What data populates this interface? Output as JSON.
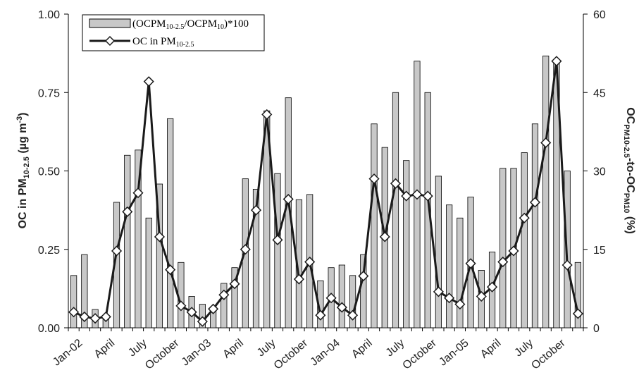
{
  "chart_data": {
    "type": "bar+line",
    "x_tick_labels": [
      "Jan-02",
      "April",
      "July",
      "October",
      "Jan-03",
      "April",
      "July",
      "October",
      "Jan-04",
      "April",
      "July",
      "October",
      "Jan-05",
      "April",
      "July",
      "October"
    ],
    "left_axis": {
      "label_main": "OC in PM",
      "label_sub": "10-2.5",
      "label_unit": " (µg m",
      "label_sup": "-3",
      "label_close": ")",
      "ylim": [
        0,
        1.0
      ],
      "ticks": [
        "0.00",
        "0.25",
        "0.50",
        "0.75",
        "1.00"
      ]
    },
    "right_axis": {
      "label_a": "OC",
      "label_a_sub": "PM10-2.5",
      "label_b": "-to-OC",
      "label_b_sub": "PM10",
      "label_c": " (%)",
      "ylim": [
        0,
        60
      ],
      "ticks": [
        "0",
        "15",
        "30",
        "45",
        "60"
      ]
    },
    "legend": {
      "bar_label": {
        "pre": "(OCPM",
        "sub1": "10-2.5",
        "mid": "/OCPM",
        "sub2": "10",
        "post": ")*100"
      },
      "line_label": {
        "pre": "OC in PM",
        "sub": "10-2.5"
      },
      "position": "top-left"
    },
    "series": [
      {
        "axis": "right",
        "type": "bar",
        "color": "#c8c8c8",
        "values": [
          10,
          14,
          3.5,
          2,
          24,
          33,
          34,
          21,
          27.5,
          40,
          12.5,
          6,
          4.5,
          4,
          8.5,
          11.5,
          28.5,
          26.5,
          41.5,
          29.5,
          44,
          24.5,
          25.5,
          9,
          11.5,
          12,
          10,
          14,
          39,
          34.5,
          45,
          32,
          51,
          45,
          29,
          23.5,
          21,
          25,
          11,
          14.5,
          30.5,
          30.5,
          33.5,
          39,
          52,
          51,
          30,
          12.5
        ]
      },
      {
        "axis": "left",
        "type": "line",
        "color": "#1a1a1a",
        "marker": "diamond",
        "values": [
          0.05,
          0.035,
          0.03,
          0.035,
          0.245,
          0.37,
          0.43,
          0.785,
          0.29,
          0.185,
          0.07,
          0.05,
          0.02,
          0.06,
          0.105,
          0.14,
          0.25,
          0.375,
          0.68,
          0.28,
          0.41,
          0.155,
          0.21,
          0.04,
          0.095,
          0.065,
          0.04,
          0.165,
          0.475,
          0.29,
          0.46,
          0.42,
          0.425,
          0.42,
          0.115,
          0.095,
          0.075,
          0.205,
          0.1,
          0.13,
          0.21,
          0.245,
          0.35,
          0.4,
          0.59,
          0.85,
          0.2,
          0.045
        ]
      }
    ],
    "grid": false
  }
}
